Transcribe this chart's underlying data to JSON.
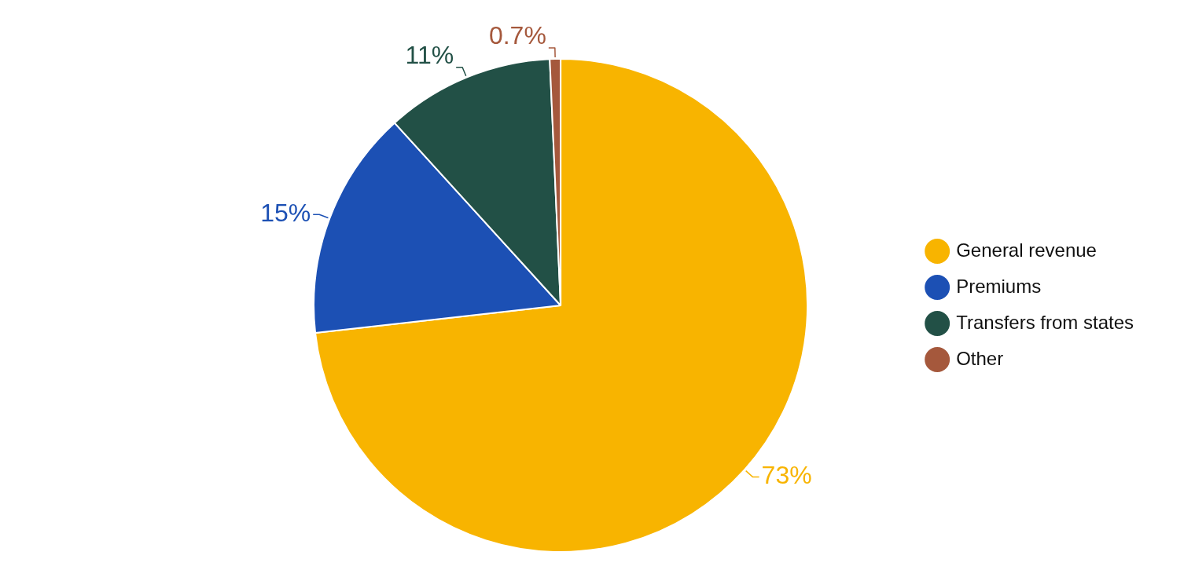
{
  "chart_data": {
    "type": "pie",
    "categories": [
      "General revenue",
      "Premiums",
      "Transfers from states",
      "Other"
    ],
    "values": [
      73,
      15,
      11,
      0.7
    ],
    "colors": [
      "#f8b400",
      "#1c50b4",
      "#225046",
      "#a5583c"
    ],
    "value_labels": [
      "73%",
      "15%",
      "11%",
      "0.7%"
    ],
    "legend": "right"
  }
}
